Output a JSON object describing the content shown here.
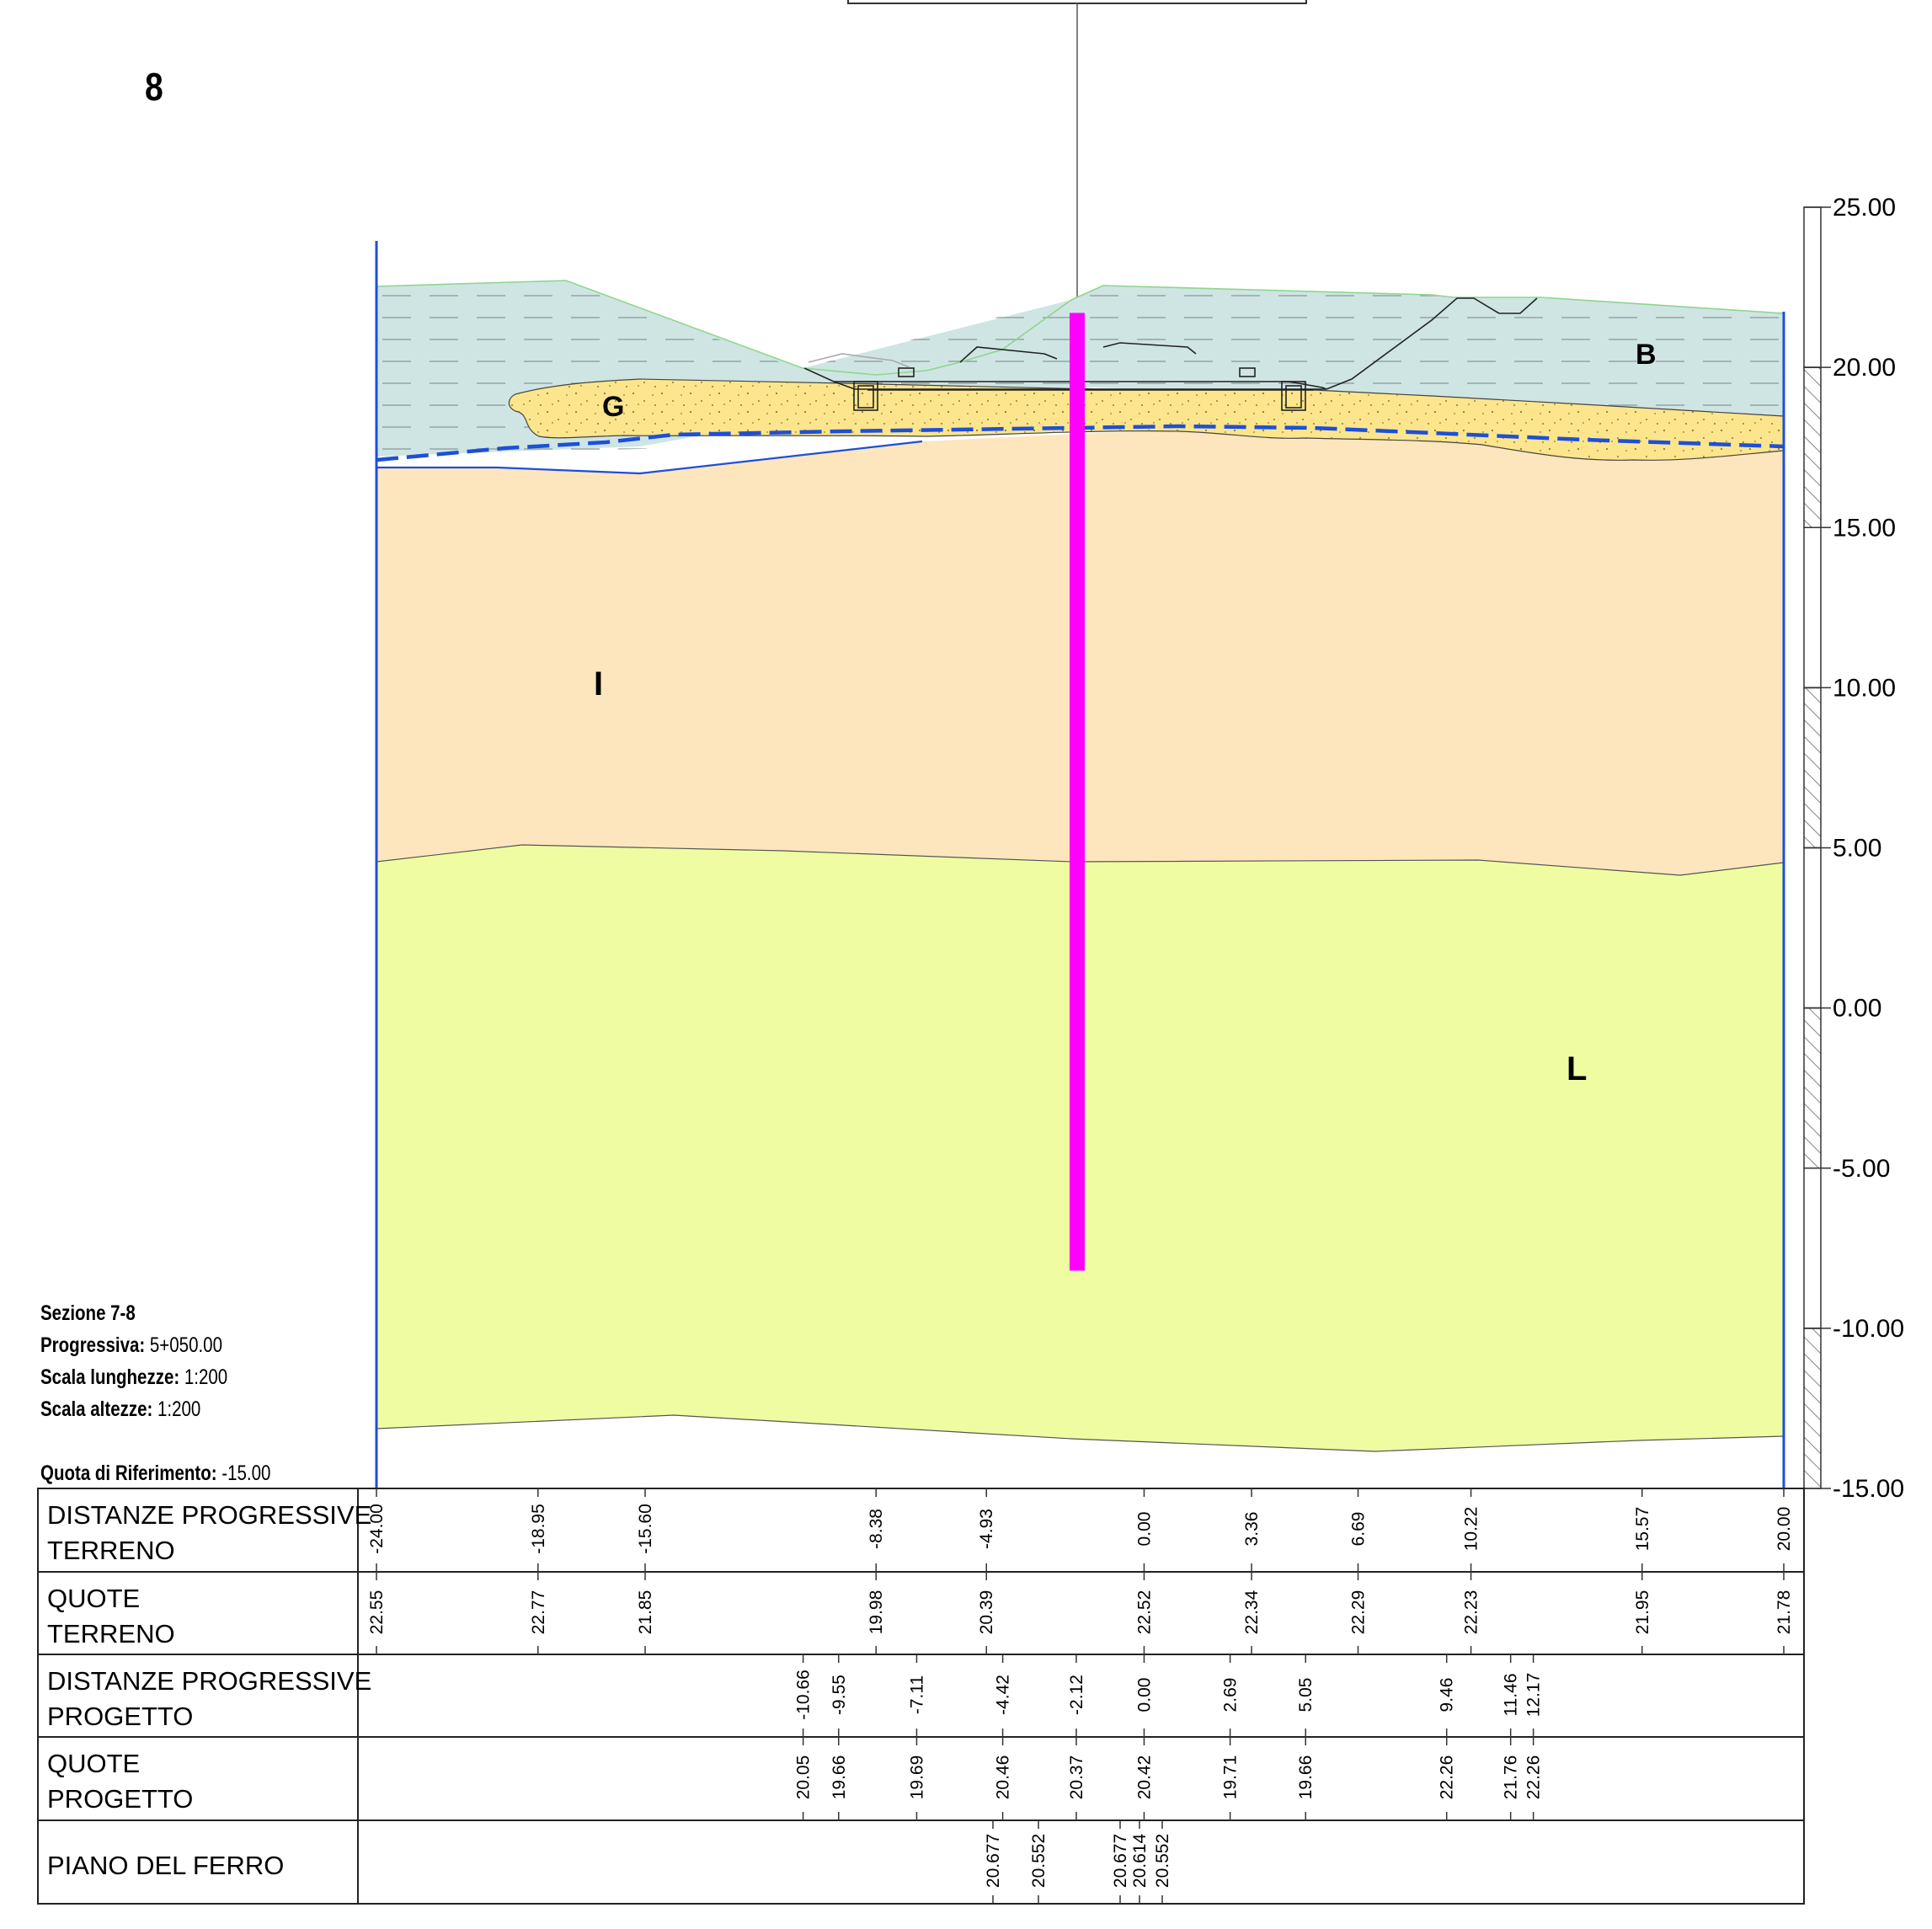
{
  "sheet_number": "8",
  "section": {
    "title": "Sezione 7-8",
    "progressiva_label": "Progressiva:",
    "progressiva_value": "5+050.00",
    "scala_lunghezze_label": "Scala lunghezze:",
    "scala_lunghezze_value": "1:200",
    "scala_altezze_label": "Scala altezze:",
    "scala_altezze_value": "1:200",
    "quota_label": "Quota di Riferimento:",
    "quota_value": "-15.00"
  },
  "elevation_scale": {
    "ticks": [
      "25.00",
      "20.00",
      "15.00",
      "10.00",
      "5.00",
      "0.00",
      "-5.00",
      "-10.00",
      "-15.00"
    ],
    "values": [
      25,
      20,
      15,
      10,
      5,
      0,
      -5,
      -10,
      -15
    ]
  },
  "layers": [
    {
      "label": "B",
      "color": "#cfe5e3"
    },
    {
      "label": "G",
      "color": "#fce58c"
    },
    {
      "label": "I",
      "color": "#fde6bd"
    },
    {
      "label": "L",
      "color": "#f0fca2"
    }
  ],
  "colors": {
    "borehole": "#ff00ff",
    "section_border": "#1d4fd8",
    "water_table": "#1d4fd8",
    "ground_line": "#8ed68e"
  },
  "terreno_profile": {
    "distances": [
      -24.0,
      -18.95,
      -15.6,
      -8.38,
      -4.93,
      0.0,
      3.36,
      6.69,
      10.22,
      15.57,
      20.0
    ],
    "elevations": [
      22.55,
      22.77,
      21.85,
      19.98,
      20.39,
      22.52,
      22.34,
      22.29,
      22.23,
      21.95,
      21.78
    ]
  },
  "progetto_profile": {
    "distances": [
      -10.66,
      -9.55,
      -7.11,
      -4.42,
      -2.12,
      0.0,
      2.69,
      5.05,
      9.46,
      11.46,
      12.17
    ],
    "elevations": [
      20.05,
      19.66,
      19.69,
      20.46,
      20.37,
      20.42,
      19.71,
      19.66,
      22.26,
      21.76,
      22.26
    ]
  },
  "borehole": {
    "top_elevation": 21.7,
    "bottom_elevation": -8.2
  },
  "table": {
    "rows": [
      {
        "label_line1": "DISTANZE PROGRESSIVE",
        "label_line2": "TERRENO",
        "values": [
          "-24.00",
          "-18.95",
          "-15.60",
          "-8.38",
          "-4.93",
          "0.00",
          "3.36",
          "6.69",
          "10.22",
          "15.57",
          "20.00"
        ]
      },
      {
        "label_line1": "QUOTE",
        "label_line2": "TERRENO",
        "values": [
          "22.55",
          "22.77",
          "21.85",
          "19.98",
          "20.39",
          "22.52",
          "22.34",
          "22.29",
          "22.23",
          "21.95",
          "21.78"
        ]
      },
      {
        "label_line1": "DISTANZE PROGRESSIVE",
        "label_line2": "PROGETTO",
        "values": [
          "-10.66",
          "-9.55",
          "-7.11",
          "-4.42",
          "-2.12",
          "0.00",
          "2.69",
          "5.05",
          "9.46",
          "11.46",
          "12.17"
        ]
      },
      {
        "label_line1": "QUOTE",
        "label_line2": "PROGETTO",
        "values": [
          "20.05",
          "19.66",
          "19.69",
          "20.46",
          "20.37",
          "20.42",
          "19.71",
          "19.66",
          "22.26",
          "21.76",
          "22.26"
        ]
      },
      {
        "label_line1": "PIANO DEL FERRO",
        "label_line2": "",
        "values": [
          "20.677",
          "20.552",
          "20.677",
          "20.614",
          "20.552"
        ]
      }
    ]
  }
}
